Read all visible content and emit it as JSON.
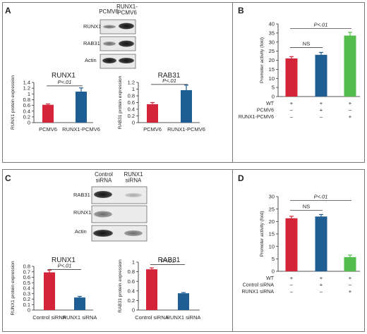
{
  "colors": {
    "red": "#d4243a",
    "blue": "#1f5e93",
    "green": "#55bd4b",
    "border": "#7a7a7a",
    "text": "#231f20"
  },
  "panels": {
    "A": {
      "letter": "A",
      "blot": {
        "lanes": [
          "PCMV6",
          "RUNX1-\nPCMV6"
        ],
        "rows": [
          "RUNX1",
          "RAB31",
          "Actin"
        ]
      }
    },
    "B": {
      "letter": "B"
    },
    "C": {
      "letter": "C",
      "blot": {
        "lanes": [
          "Control\nsiRNA",
          "RUNX1\nsiRNA"
        ],
        "rows": [
          "RAB31",
          "RUNX1",
          "Actin"
        ]
      }
    },
    "D": {
      "letter": "D"
    }
  },
  "chart_data": [
    {
      "id": "A1",
      "type": "bar",
      "title": "RUNX1",
      "ylabel": "RUNX1 protein expression",
      "categories": [
        "PCMV6",
        "RUNX1-PCMV6"
      ],
      "values": [
        0.62,
        1.08
      ],
      "errors": [
        0.03,
        0.13
      ],
      "bar_colors": [
        "red",
        "blue"
      ],
      "ylim": [
        0,
        1.4
      ],
      "yticks": [
        "0",
        "0.2",
        "0.4",
        "0.6",
        "0.8",
        "1",
        "1.2",
        "1.4"
      ],
      "annotations": [
        {
          "text": "P<.01",
          "from": 0,
          "to": 1,
          "y": 1.28
        }
      ]
    },
    {
      "id": "A2",
      "type": "bar",
      "title": "RAB31",
      "ylabel": "RAB31 protein expression",
      "categories": [
        "PCMV6",
        "RUNX1-PCMV6"
      ],
      "values": [
        0.55,
        0.97
      ],
      "errors": [
        0.05,
        0.15
      ],
      "bar_colors": [
        "red",
        "blue"
      ],
      "ylim": [
        0,
        1.2
      ],
      "yticks": [
        "0",
        "0.2",
        "0.4",
        "0.6",
        "0.8",
        "1",
        "1.2"
      ],
      "annotations": [
        {
          "text": "P<.01",
          "from": 0,
          "to": 1,
          "y": 1.14
        }
      ]
    },
    {
      "id": "B",
      "type": "bar",
      "ylabel": "Promoter activity (fold)",
      "values": [
        21,
        23,
        33.6
      ],
      "errors": [
        1.0,
        1.3,
        1.8
      ],
      "bar_colors": [
        "red",
        "blue",
        "green"
      ],
      "ylim": [
        0,
        40
      ],
      "yticks": [
        "0",
        "5",
        "10",
        "15",
        "20",
        "25",
        "30",
        "35",
        "40"
      ],
      "annotations": [
        {
          "text": "NS",
          "from": 0,
          "to": 1,
          "y": 27
        },
        {
          "text": "P<.01",
          "from": 0,
          "to": 2,
          "y": 37.5
        }
      ],
      "conditions": [
        {
          "label": "WT",
          "marks": [
            "+",
            "+",
            "+"
          ]
        },
        {
          "label": "PCMV6",
          "marks": [
            "–",
            "+",
            "–"
          ]
        },
        {
          "label": "RUNX1-PCMV6",
          "marks": [
            "–",
            "–",
            "+"
          ]
        }
      ]
    },
    {
      "id": "C1",
      "type": "bar",
      "title": "RUNX1",
      "ylabel": "RUNX1 protein expression",
      "categories": [
        "Control siRNA",
        "RUNX1 siRNA"
      ],
      "values": [
        0.69,
        0.23
      ],
      "errors": [
        0.04,
        0.02
      ],
      "bar_colors": [
        "red",
        "blue"
      ],
      "ylim": [
        0,
        0.8
      ],
      "yticks": [
        "0",
        "0.1",
        "0.2",
        "0.3",
        "0.4",
        "0.5",
        "0.6",
        "0.7",
        "0.8"
      ],
      "annotations": [
        {
          "text": "P<.01",
          "from": 0,
          "to": 1,
          "y": 0.74
        }
      ]
    },
    {
      "id": "C2",
      "type": "bar",
      "title": "RAB31",
      "ylabel": "RAB31 protein expression",
      "categories": [
        "Control siRNA",
        "RUNX1 siRNA"
      ],
      "values": [
        0.85,
        0.35
      ],
      "errors": [
        0.03,
        0.015
      ],
      "bar_colors": [
        "red",
        "blue"
      ],
      "ylim": [
        0,
        1
      ],
      "yticks": [
        "0",
        "0.2",
        "0.4",
        "0.6",
        "0.8",
        "1"
      ],
      "annotations": [
        {
          "text": "P<.01",
          "from": 0,
          "to": 1,
          "y": 0.95
        }
      ]
    },
    {
      "id": "D",
      "type": "bar",
      "ylabel": "Promoter activity (fold)",
      "values": [
        21.3,
        22,
        5.7
      ],
      "errors": [
        0.8,
        0.8,
        0.8
      ],
      "bar_colors": [
        "red",
        "blue",
        "green"
      ],
      "ylim": [
        0,
        30
      ],
      "yticks": [
        "0",
        "5",
        "10",
        "15",
        "20",
        "25",
        "30"
      ],
      "annotations": [
        {
          "text": "NS",
          "from": 0,
          "to": 1,
          "y": 24.5
        },
        {
          "text": "P<.01",
          "from": 0,
          "to": 2,
          "y": 28.5
        }
      ],
      "conditions": [
        {
          "label": "WT",
          "marks": [
            "+",
            "+",
            "+"
          ]
        },
        {
          "label": "Control siRNA",
          "marks": [
            "–",
            "+",
            "–"
          ]
        },
        {
          "label": "RUNX1 siRNA",
          "marks": [
            "–",
            "–",
            "+"
          ]
        }
      ]
    }
  ]
}
